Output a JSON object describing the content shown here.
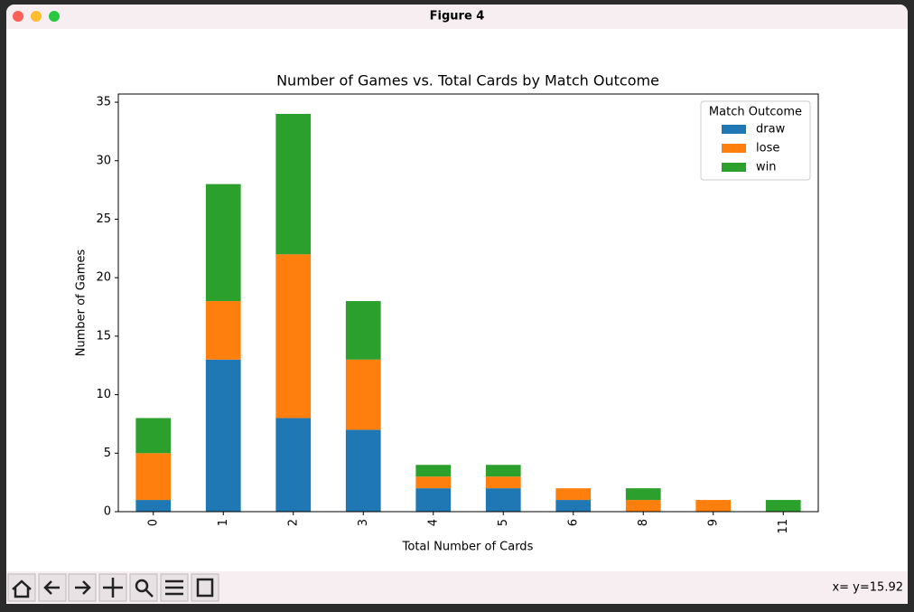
{
  "window": {
    "title": "Figure 4",
    "status": "x= y=15.92"
  },
  "chart_data": {
    "type": "stacked_bar",
    "title": "Number of Games vs. Total Cards by Match Outcome",
    "xlabel": "Total Number of Cards",
    "ylabel": "Number of Games",
    "categories": [
      "0",
      "1",
      "2",
      "3",
      "4",
      "5",
      "6",
      "8",
      "9",
      "11"
    ],
    "series": [
      {
        "name": "draw",
        "color": "#1f77b4",
        "values": [
          1,
          13,
          8,
          7,
          2,
          2,
          1,
          0,
          0,
          0
        ]
      },
      {
        "name": "lose",
        "color": "#ff7f0e",
        "values": [
          4,
          5,
          14,
          6,
          1,
          1,
          1,
          1,
          1,
          0
        ]
      },
      {
        "name": "win",
        "color": "#2ca02c",
        "values": [
          3,
          10,
          12,
          5,
          1,
          1,
          0,
          1,
          0,
          1
        ]
      }
    ],
    "ylim": [
      0,
      35.7
    ],
    "yticks": [
      0,
      5,
      10,
      15,
      20,
      25,
      30,
      35
    ],
    "legend_title": "Match Outcome",
    "legend": "upper right",
    "grid": false
  }
}
